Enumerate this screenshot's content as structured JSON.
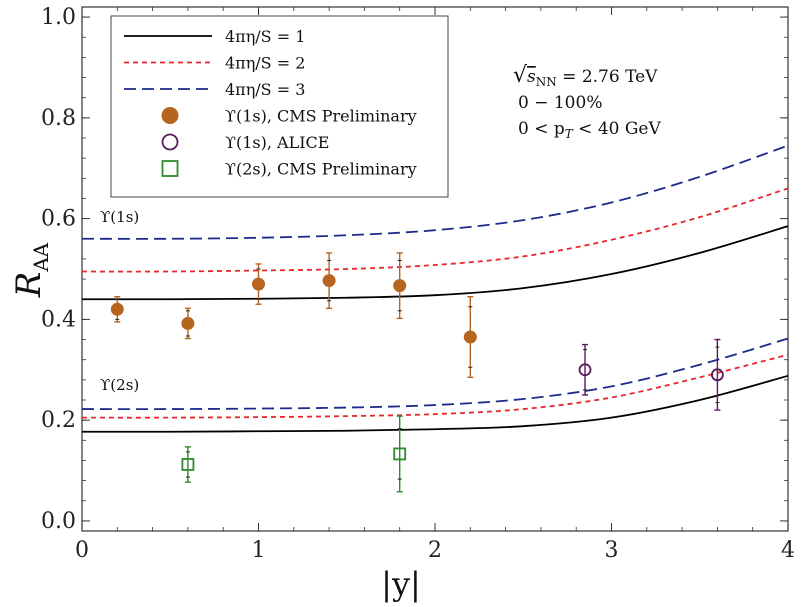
{
  "chart_data": {
    "type": "line",
    "xlabel": "|y|",
    "ylabel": "R_AA",
    "xlim": [
      0,
      4
    ],
    "ylim": [
      -0.02,
      1.02
    ],
    "xticks": [
      0,
      1,
      2,
      3,
      4
    ],
    "xtick_labels": [
      "0",
      "1",
      "2",
      "3",
      "4"
    ],
    "yticks": [
      0.0,
      0.2,
      0.4,
      0.6,
      0.8,
      1.0
    ],
    "ytick_labels": [
      "0.0",
      "0.2",
      "0.4",
      "0.6",
      "0.8",
      "1.0"
    ],
    "grid": false,
    "legend_position": "top-left",
    "legend": [
      {
        "label": "4πη/S = 1",
        "kind": "line",
        "color": "#000000",
        "dash": "solid"
      },
      {
        "label": "4πη/S = 2",
        "kind": "line",
        "color": "#e8272a",
        "dash": "dotted"
      },
      {
        "label": "4πη/S = 3",
        "kind": "line",
        "color": "#1d2a8c",
        "dash": "dashed"
      },
      {
        "label": "ϒ(1s), CMS Preliminary",
        "kind": "marker",
        "marker": "filled-circle",
        "color": "#b5651d"
      },
      {
        "label": "ϒ(1s), ALICE",
        "kind": "marker",
        "marker": "open-circle",
        "color": "#5b1a5e"
      },
      {
        "label": "ϒ(2s), CMS Preliminary",
        "kind": "marker",
        "marker": "open-square",
        "color": "#2e8b2e"
      }
    ],
    "annotations": {
      "energy_sqrt": "√",
      "energy_sub": "s",
      "energy_subscript": "NN",
      "energy_value": " = 2.76 TeV",
      "centrality": "0 − 100%",
      "pt_range": "0 < p",
      "pt_sub": "T",
      "pt_range_end": " < 40 GeV",
      "upsilon1s_label": "ϒ(1s)",
      "upsilon2s_label": "ϒ(2s)"
    },
    "series": [
      {
        "name": "4πη/S = 1 ϒ(1s)",
        "group": "1s",
        "color": "#000000",
        "dash": "solid",
        "x": [
          0,
          0.5,
          1.0,
          1.5,
          2.0,
          2.5,
          3.0,
          3.5,
          4.0
        ],
        "y": [
          0.44,
          0.44,
          0.441,
          0.443,
          0.448,
          0.462,
          0.49,
          0.532,
          0.585
        ]
      },
      {
        "name": "4πη/S = 2 ϒ(1s)",
        "group": "1s",
        "color": "#e8272a",
        "dash": "dotted",
        "x": [
          0,
          0.5,
          1.0,
          1.5,
          2.0,
          2.5,
          3.0,
          3.5,
          4.0
        ],
        "y": [
          0.495,
          0.495,
          0.497,
          0.5,
          0.508,
          0.525,
          0.558,
          0.603,
          0.66
        ]
      },
      {
        "name": "4πη/S = 3 ϒ(1s)",
        "group": "1s",
        "color": "#1d2a8c",
        "dash": "dashed",
        "x": [
          0,
          0.5,
          1.0,
          1.5,
          2.0,
          2.5,
          3.0,
          3.5,
          4.0
        ],
        "y": [
          0.56,
          0.56,
          0.562,
          0.567,
          0.577,
          0.597,
          0.632,
          0.683,
          0.745
        ]
      },
      {
        "name": "4πη/S = 1 ϒ(2s)",
        "group": "2s",
        "color": "#000000",
        "dash": "solid",
        "x": [
          0,
          0.5,
          1.0,
          1.5,
          2.0,
          2.5,
          3.0,
          3.5,
          4.0
        ],
        "y": [
          0.177,
          0.177,
          0.178,
          0.179,
          0.182,
          0.188,
          0.205,
          0.24,
          0.288
        ]
      },
      {
        "name": "4πη/S = 2 ϒ(2s)",
        "group": "2s",
        "color": "#e8272a",
        "dash": "dotted",
        "x": [
          0,
          0.5,
          1.0,
          1.5,
          2.0,
          2.5,
          3.0,
          3.5,
          4.0
        ],
        "y": [
          0.205,
          0.205,
          0.206,
          0.208,
          0.212,
          0.222,
          0.245,
          0.285,
          0.33
        ]
      },
      {
        "name": "4πη/S = 3 ϒ(2s)",
        "group": "2s",
        "color": "#1d2a8c",
        "dash": "dashed",
        "x": [
          0,
          0.5,
          1.0,
          1.5,
          2.0,
          2.5,
          3.0,
          3.5,
          4.0
        ],
        "y": [
          0.222,
          0.222,
          0.223,
          0.225,
          0.23,
          0.242,
          0.267,
          0.31,
          0.362
        ]
      }
    ],
    "points": [
      {
        "name": "ϒ(1s), CMS Preliminary",
        "marker": "filled-circle",
        "color": "#b5651d",
        "data": [
          {
            "x": 0.2,
            "y": 0.42,
            "err_stat": 0.025,
            "err_syst": 0.02
          },
          {
            "x": 0.6,
            "y": 0.392,
            "err_stat": 0.03,
            "err_syst": 0.025
          },
          {
            "x": 1.0,
            "y": 0.47,
            "err_stat": 0.04,
            "err_syst": 0.03
          },
          {
            "x": 1.4,
            "y": 0.477,
            "err_stat": 0.055,
            "err_syst": 0.04
          },
          {
            "x": 1.8,
            "y": 0.467,
            "err_stat": 0.065,
            "err_syst": 0.05
          },
          {
            "x": 2.2,
            "y": 0.365,
            "err_stat": 0.08,
            "err_syst": 0.06
          }
        ]
      },
      {
        "name": "ϒ(1s), ALICE",
        "marker": "open-circle",
        "color": "#5b1a5e",
        "data": [
          {
            "x": 2.85,
            "y": 0.3,
            "err_stat": 0.05,
            "err_syst": 0.04
          },
          {
            "x": 3.6,
            "y": 0.29,
            "err_stat": 0.07,
            "err_syst": 0.055
          }
        ]
      },
      {
        "name": "ϒ(2s), CMS Preliminary",
        "marker": "open-square",
        "color": "#2e8b2e",
        "data": [
          {
            "x": 0.6,
            "y": 0.112,
            "err_stat": 0.035,
            "err_syst": 0.025
          },
          {
            "x": 1.8,
            "y": 0.133,
            "err_stat": 0.075,
            "err_syst": 0.05
          }
        ]
      }
    ]
  }
}
